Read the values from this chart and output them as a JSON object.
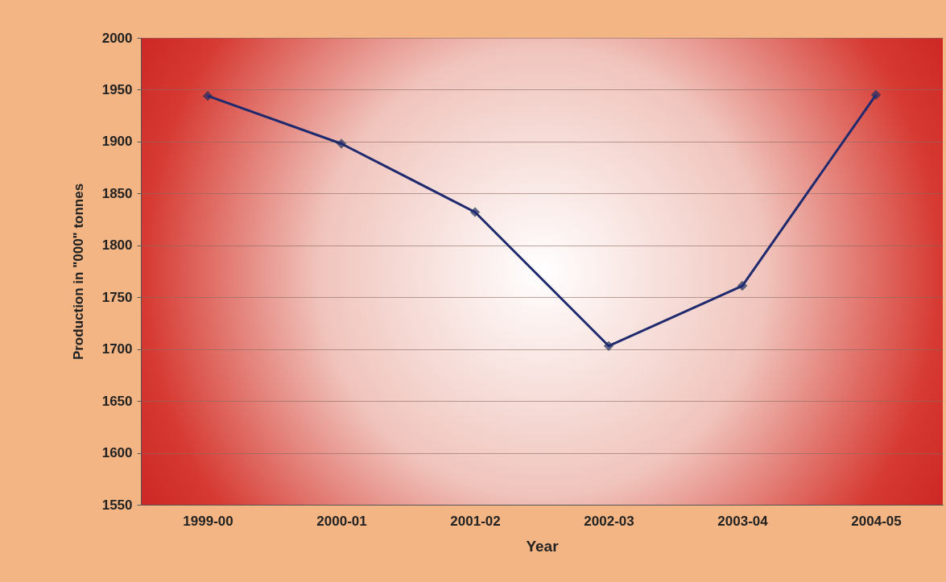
{
  "chart_data": {
    "type": "line",
    "xlabel": "Year",
    "ylabel": "Production in \"000\" tonnes",
    "categories": [
      "1999-00",
      "2000-01",
      "2001-02",
      "2002-03",
      "2003-04",
      "2004-05"
    ],
    "series": [
      {
        "color": "#1f2a6e",
        "values": [
          1944,
          1898,
          1832,
          1703,
          1761,
          1945
        ]
      }
    ],
    "ylim": [
      1550,
      2000
    ],
    "yticks": [
      1550,
      1600,
      1650,
      1700,
      1750,
      1800,
      1850,
      1900,
      1950,
      2000
    ],
    "grid": "y",
    "marker": "diamond",
    "line_style": "solid",
    "legend": false
  }
}
